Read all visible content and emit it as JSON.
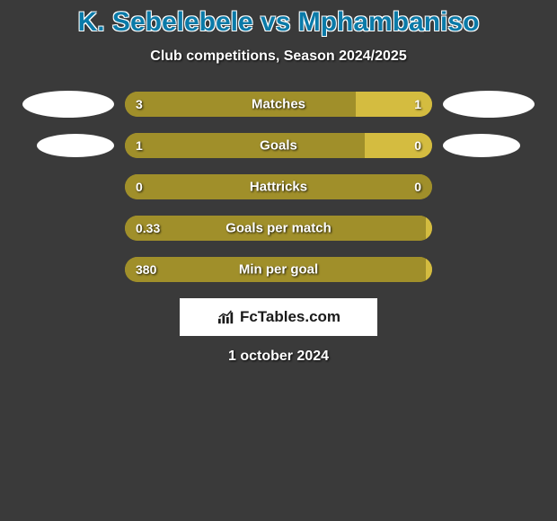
{
  "background_color": "#3a3a3a",
  "title": {
    "text": "K. Sebelebele vs Mphambaniso",
    "color": "#0a7aa8",
    "fontsize": 30
  },
  "subtitle": {
    "text": "Club competitions, Season 2024/2025",
    "color": "#ffffff",
    "fontsize": 16
  },
  "bars": {
    "track_width": 342,
    "track_height": 28,
    "track_radius": 14,
    "track_bg": "#a08f2a",
    "left_color": "#a08f2a",
    "right_color": "#d4bc40",
    "text_color": "#ffffff",
    "rows": [
      {
        "label": "Matches",
        "left_val": "3",
        "right_val": "1",
        "left_pct": 75,
        "right_pct": 25,
        "show_avatars": true,
        "avatar_left_w": 102,
        "avatar_left_h": 30,
        "avatar_right_w": 102,
        "avatar_right_h": 30
      },
      {
        "label": "Goals",
        "left_val": "1",
        "right_val": "0",
        "left_pct": 78,
        "right_pct": 22,
        "show_avatars": true,
        "avatar_left_w": 86,
        "avatar_left_h": 26,
        "avatar_right_w": 86,
        "avatar_right_h": 26
      },
      {
        "label": "Hattricks",
        "left_val": "0",
        "right_val": "0",
        "left_pct": 100,
        "right_pct": 0,
        "show_avatars": false
      },
      {
        "label": "Goals per match",
        "left_val": "0.33",
        "right_val": "",
        "left_pct": 98,
        "right_pct": 2,
        "show_avatars": false
      },
      {
        "label": "Min per goal",
        "left_val": "380",
        "right_val": "",
        "left_pct": 98,
        "right_pct": 2,
        "show_avatars": false
      }
    ]
  },
  "branding": {
    "text": "FcTables.com",
    "bg": "#ffffff",
    "color": "#1a1a1a"
  },
  "datestamp": {
    "text": "1 october 2024",
    "color": "#ffffff"
  }
}
